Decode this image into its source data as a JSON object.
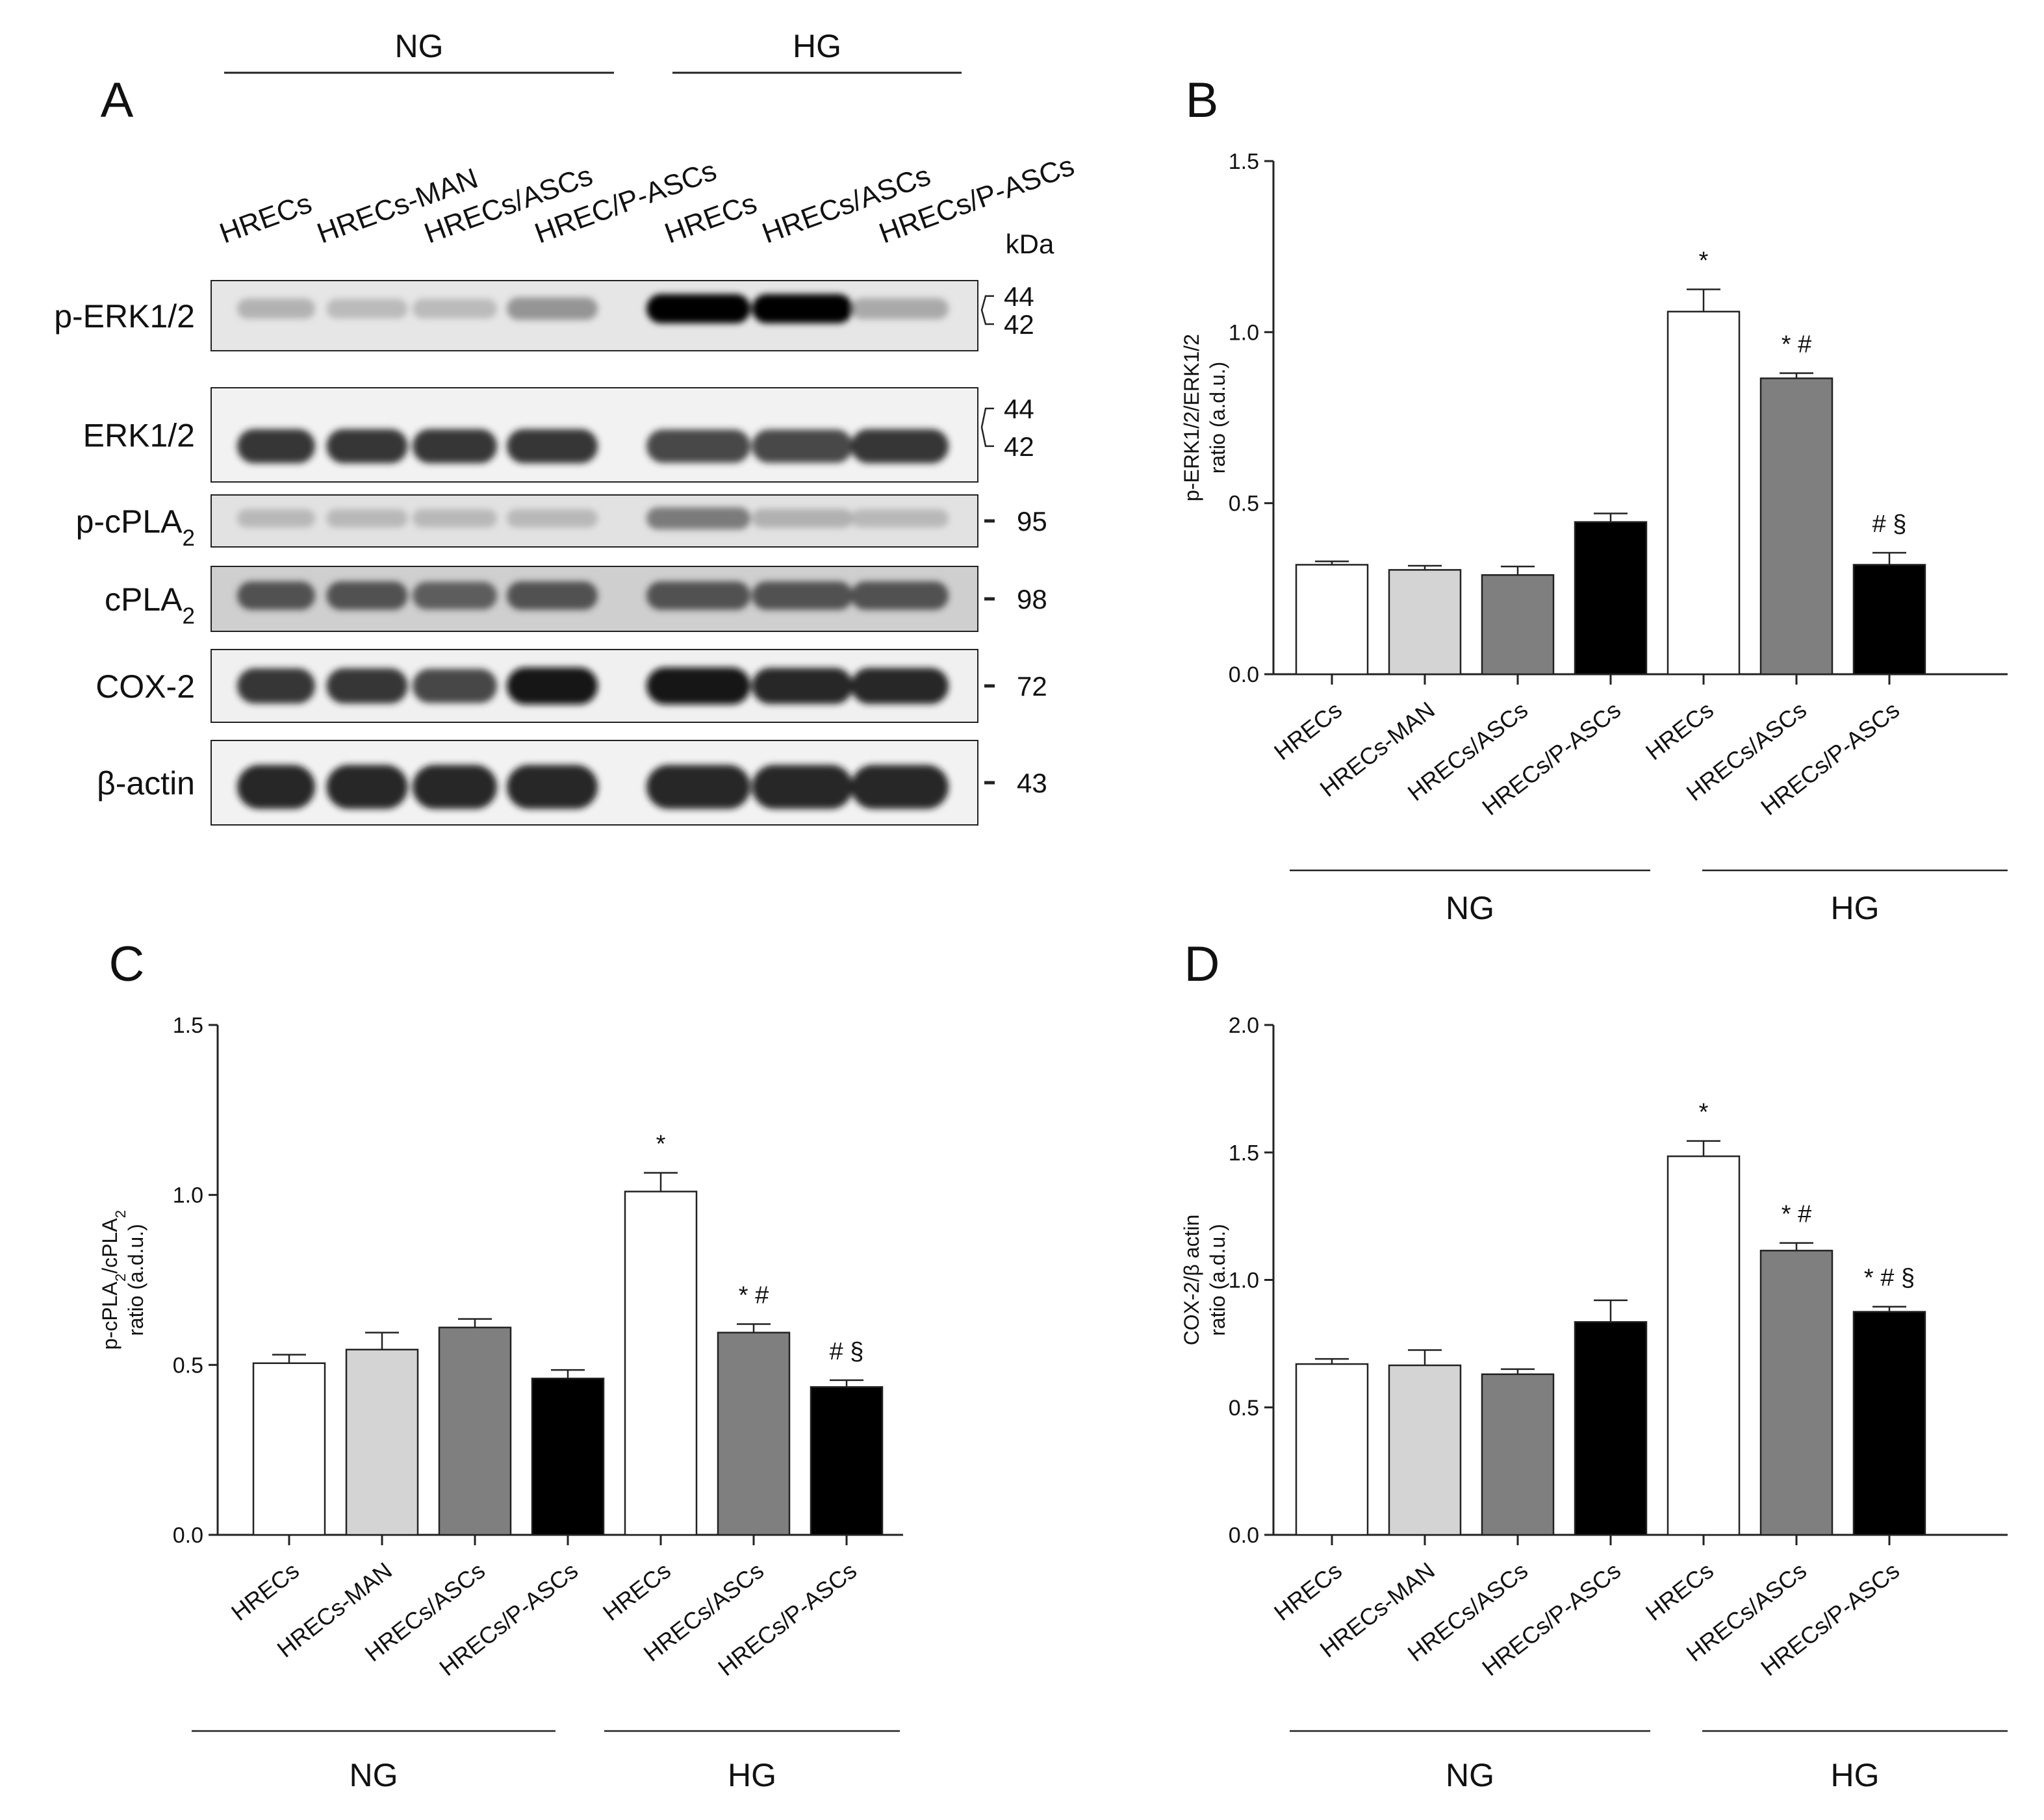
{
  "panel_a": {
    "letter": "A",
    "groups": [
      "NG",
      "HG"
    ],
    "lanes": [
      "HRECs",
      "HRECs-MAN",
      "HRECs/ASCs",
      "HREC/P-ASCs",
      "HRECs",
      "HRECs/ASCs",
      "HRECs/P-ASCs"
    ],
    "kda_label": "kDa",
    "blots": [
      {
        "label": "p-ERK1/2",
        "label_main": "p-ERK1/2",
        "label_sub": "",
        "kda": [
          "44",
          "42"
        ],
        "bg": "#e6e6e6",
        "intensity": [
          0.35,
          0.3,
          0.3,
          0.5,
          1.0,
          1.0,
          0.4
        ]
      },
      {
        "label": "ERK1/2",
        "label_main": "ERK1/2",
        "label_sub": "",
        "kda": [
          "44",
          "42"
        ],
        "bg": "#f2f2f2",
        "intensity": [
          0.85,
          0.85,
          0.85,
          0.85,
          0.8,
          0.8,
          0.85
        ]
      },
      {
        "label": "p-cPLA2",
        "label_main": "p-cPLA",
        "label_sub": "2",
        "kda": [
          "95"
        ],
        "bg": "#e2e2e2",
        "intensity": [
          0.3,
          0.3,
          0.3,
          0.3,
          0.6,
          0.35,
          0.3
        ]
      },
      {
        "label": "cPLA2",
        "label_main": "cPLA",
        "label_sub": "2",
        "kda": [
          "98"
        ],
        "bg": "#cfcfcf",
        "intensity": [
          0.75,
          0.75,
          0.7,
          0.75,
          0.75,
          0.75,
          0.75
        ]
      },
      {
        "label": "COX-2",
        "label_main": "COX-2",
        "label_sub": "",
        "kda": [
          "72"
        ],
        "bg": "#f0f0f0",
        "intensity": [
          0.85,
          0.85,
          0.8,
          0.95,
          0.95,
          0.9,
          0.9
        ]
      },
      {
        "label": "β-actin",
        "label_main": "β-actin",
        "label_sub": "",
        "kda": [
          "43"
        ],
        "bg": "#f2f2f2",
        "intensity": [
          0.9,
          0.9,
          0.9,
          0.9,
          0.9,
          0.9,
          0.9
        ]
      }
    ]
  },
  "chart_data": [
    {
      "letter": "B",
      "type": "bar",
      "ylabel": [
        "p-ERK1/2/ERK1/2",
        "ratio (a.d.u.)"
      ],
      "ylabel_lines": [
        {
          "main": "p-ERK1/2/ERK1/2",
          "sub": ""
        },
        {
          "main": "ratio (a.d.u.)",
          "sub": ""
        }
      ],
      "ylim": [
        0,
        1.5
      ],
      "yticks": [
        "0.0",
        "0.5",
        "1.0",
        "1.5"
      ],
      "categories": [
        "HRECs",
        "HRECs-MAN",
        "HRECs/ASCs",
        "HRECs/P-ASCs",
        "HRECs",
        "HRECs/ASCs",
        "HRECs/P-ASCs"
      ],
      "values": [
        0.32,
        0.305,
        0.29,
        0.445,
        1.06,
        0.865,
        0.32
      ],
      "errors": [
        0.01,
        0.012,
        0.025,
        0.025,
        0.065,
        0.015,
        0.035
      ],
      "colors": [
        "#ffffff",
        "#d4d4d4",
        "#7f7f7f",
        "#000000",
        "#ffffff",
        "#7f7f7f",
        "#000000"
      ],
      "annotations": [
        "",
        "",
        "",
        "",
        "*",
        "* #",
        "# §"
      ],
      "groups": [
        {
          "label": "NG",
          "start": 0,
          "end": 3
        },
        {
          "label": "HG",
          "start": 4,
          "end": 6
        }
      ]
    },
    {
      "letter": "C",
      "type": "bar",
      "ylabel": [
        "p-cPLA2/cPLA2",
        "ratio (a.d.u.)"
      ],
      "ylabel_lines": [
        {
          "main": "p-cPLA",
          "sub": "2",
          "main2": "/cPLA",
          "sub2": "2"
        },
        {
          "main": "ratio (a.d.u.)",
          "sub": ""
        }
      ],
      "ylim": [
        0,
        1.5
      ],
      "yticks": [
        "0.0",
        "0.5",
        "1.0",
        "1.5"
      ],
      "categories": [
        "HRECs",
        "HRECs-MAN",
        "HRECs/ASCs",
        "HRECs/P-ASCs",
        "HRECs",
        "HRECs/ASCs",
        "HRECs/P-ASCs"
      ],
      "values": [
        0.505,
        0.545,
        0.61,
        0.46,
        1.01,
        0.595,
        0.435
      ],
      "errors": [
        0.025,
        0.05,
        0.025,
        0.025,
        0.055,
        0.025,
        0.02
      ],
      "colors": [
        "#ffffff",
        "#d4d4d4",
        "#7f7f7f",
        "#000000",
        "#ffffff",
        "#7f7f7f",
        "#000000"
      ],
      "annotations": [
        "",
        "",
        "",
        "",
        "*",
        "* #",
        "# §"
      ],
      "groups": [
        {
          "label": "NG",
          "start": 0,
          "end": 3
        },
        {
          "label": "HG",
          "start": 4,
          "end": 6
        }
      ]
    },
    {
      "letter": "D",
      "type": "bar",
      "ylabel": [
        "COX-2/β actin",
        "ratio (a.d.u.)"
      ],
      "ylabel_lines": [
        {
          "main": "COX-2/β actin",
          "sub": ""
        },
        {
          "main": "ratio (a.d.u.)",
          "sub": ""
        }
      ],
      "ylim": [
        0,
        2.0
      ],
      "yticks": [
        "0.0",
        "0.5",
        "1.0",
        "1.5",
        "2.0"
      ],
      "categories": [
        "HRECs",
        "HRECs-MAN",
        "HRECs/ASCs",
        "HRECs/P-ASCs",
        "HRECs",
        "HRECs/ASCs",
        "HRECs/P-ASCs"
      ],
      "values": [
        0.67,
        0.665,
        0.63,
        0.835,
        1.485,
        1.115,
        0.875
      ],
      "errors": [
        0.02,
        0.06,
        0.02,
        0.085,
        0.06,
        0.03,
        0.02
      ],
      "colors": [
        "#ffffff",
        "#d4d4d4",
        "#7f7f7f",
        "#000000",
        "#ffffff",
        "#7f7f7f",
        "#000000"
      ],
      "annotations": [
        "",
        "",
        "",
        "",
        "*",
        "* #",
        "* # §"
      ],
      "groups": [
        {
          "label": "NG",
          "start": 0,
          "end": 3
        },
        {
          "label": "HG",
          "start": 4,
          "end": 6
        }
      ]
    }
  ]
}
